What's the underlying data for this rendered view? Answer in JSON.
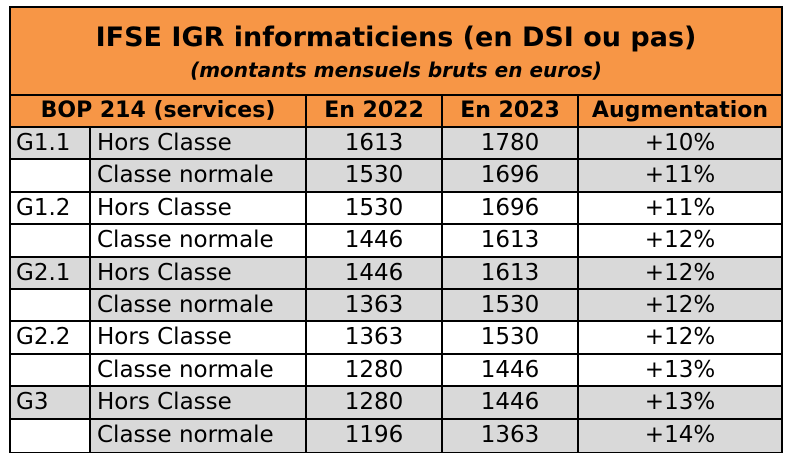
{
  "title": "IFSE IGR informaticiens (en DSI ou pas)",
  "subtitle": "(montants mensuels bruts en euros)",
  "colors": {
    "header_orange": "#f79646",
    "row_grey": "#d9d9d9",
    "row_white": "#ffffff",
    "border": "#000000"
  },
  "columns": [
    "BOP 214 (services)",
    "En 2022",
    "En 2023",
    "Augmentation"
  ],
  "rows": [
    {
      "group": "G1.1",
      "grade": "Hors Classe",
      "y2022": "1613",
      "y2023": "1780",
      "increase": "+10%"
    },
    {
      "group": "",
      "grade": "Classe normale",
      "y2022": "1530",
      "y2023": "1696",
      "increase": "+11%"
    },
    {
      "group": "G1.2",
      "grade": "Hors Classe",
      "y2022": "1530",
      "y2023": "1696",
      "increase": "+11%"
    },
    {
      "group": "",
      "grade": "Classe normale",
      "y2022": "1446",
      "y2023": "1613",
      "increase": "+12%"
    },
    {
      "group": "G2.1",
      "grade": "Hors Classe",
      "y2022": "1446",
      "y2023": "1613",
      "increase": "+12%"
    },
    {
      "group": "",
      "grade": "Classe normale",
      "y2022": "1363",
      "y2023": "1530",
      "increase": "+12%"
    },
    {
      "group": "G2.2",
      "grade": "Hors Classe",
      "y2022": "1363",
      "y2023": "1530",
      "increase": "+12%"
    },
    {
      "group": "",
      "grade": "Classe normale",
      "y2022": "1280",
      "y2023": "1446",
      "increase": "+13%"
    },
    {
      "group": "G3",
      "grade": "Hors Classe",
      "y2022": "1280",
      "y2023": "1446",
      "increase": "+13%"
    },
    {
      "group": "",
      "grade": "Classe normale",
      "y2022": "1196",
      "y2023": "1363",
      "increase": "+14%"
    }
  ]
}
